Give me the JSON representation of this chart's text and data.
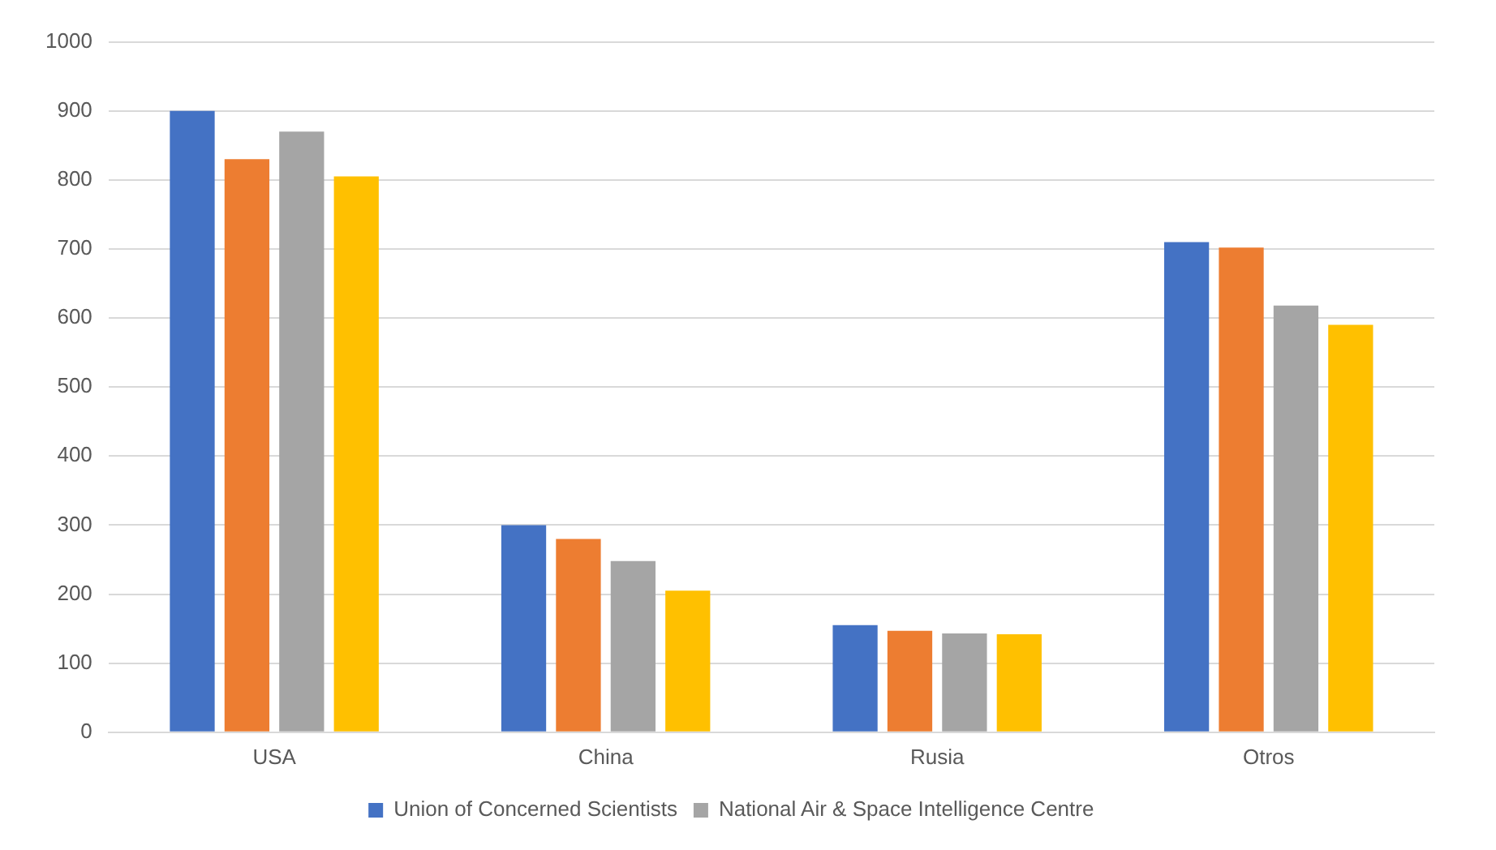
{
  "chart_data": {
    "type": "bar",
    "categories": [
      "USA",
      "China",
      "Rusia",
      "Otros"
    ],
    "series": [
      {
        "name": "Union of Concerned Scientists",
        "color": "#4472c4",
        "values": [
          900,
          300,
          155,
          710
        ]
      },
      {
        "color": "#ed7d31",
        "values": [
          830,
          280,
          147,
          702
        ]
      },
      {
        "name": "National Air & Space Intelligence Centre",
        "color": "#a5a5a5",
        "values": [
          870,
          248,
          143,
          618
        ]
      },
      {
        "color": "#ffc000",
        "values": [
          805,
          205,
          142,
          590
        ]
      }
    ],
    "ylim": [
      0,
      1000
    ],
    "yticks": [
      0,
      100,
      200,
      300,
      400,
      500,
      600,
      700,
      800,
      900,
      1000
    ],
    "grid": "y",
    "legend": "bottom"
  }
}
